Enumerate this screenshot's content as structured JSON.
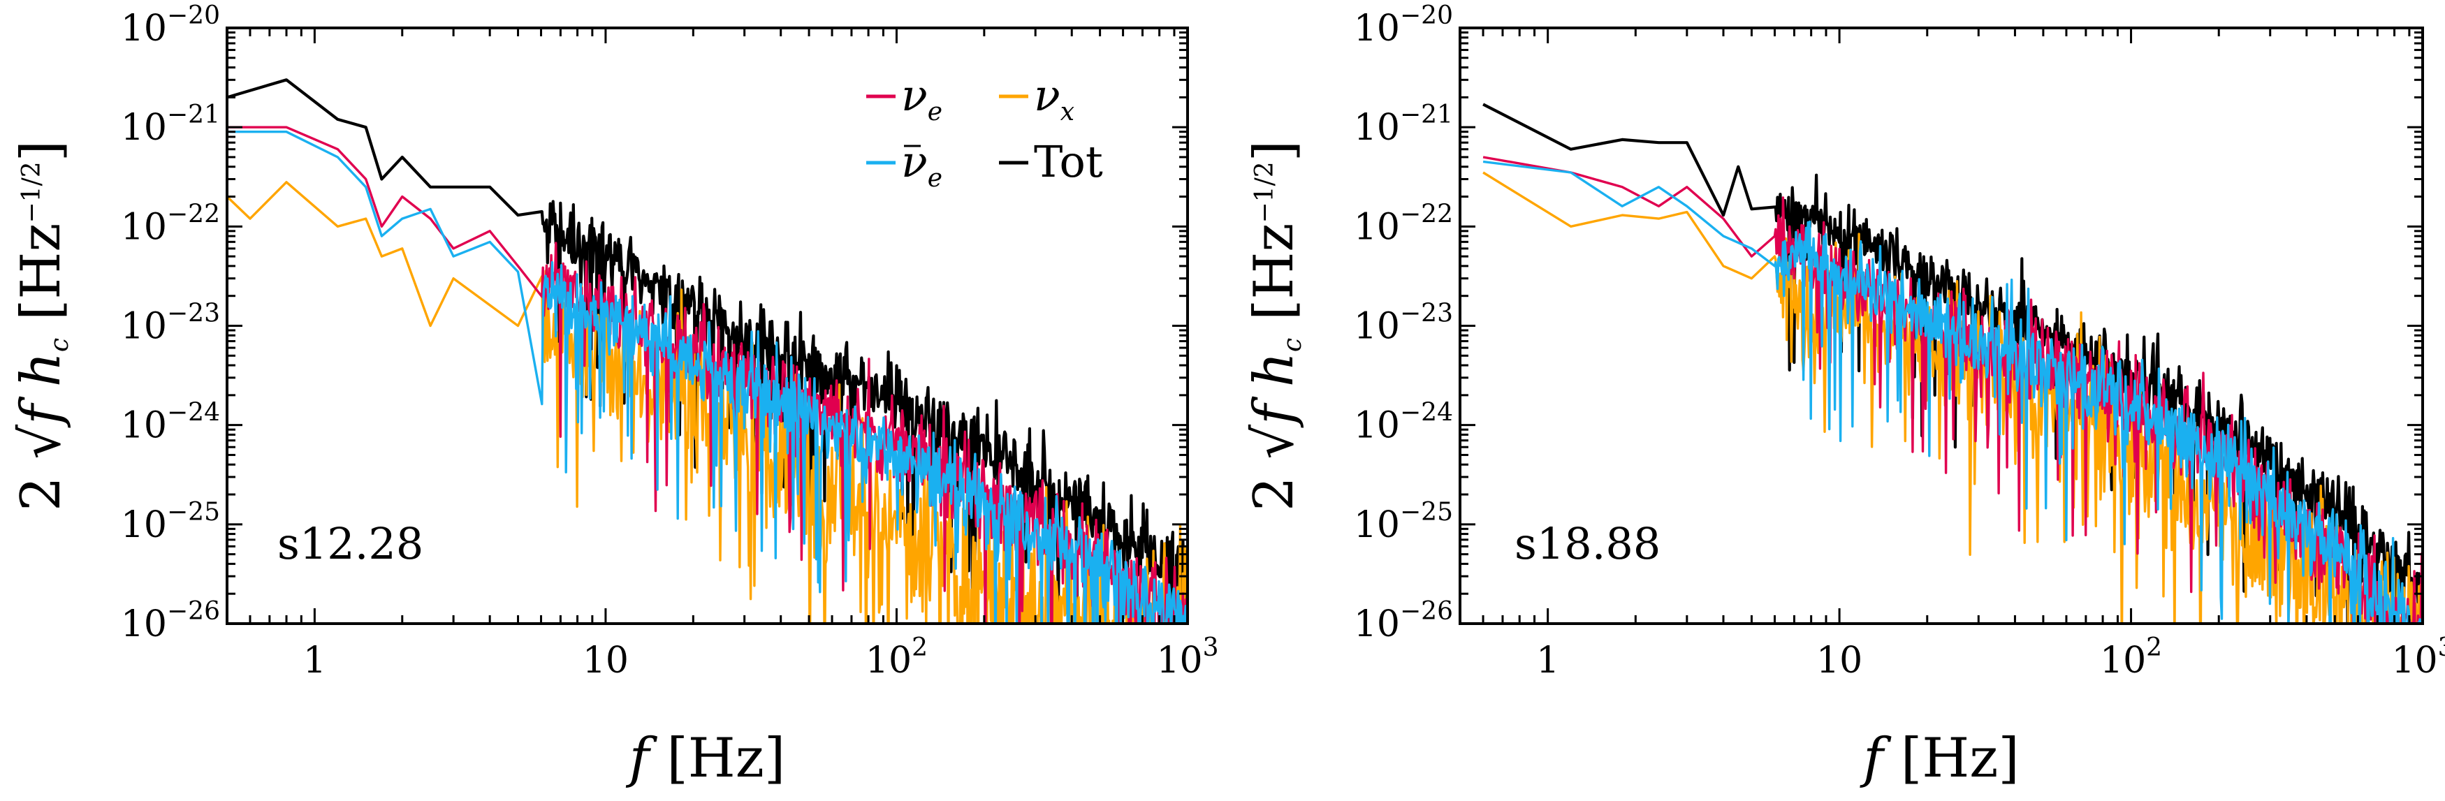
{
  "chart_data": [
    {
      "type": "line",
      "panel_label": "s12.28",
      "xlabel": "f [Hz]",
      "ylabel": "2 √f h_c [Hz^−1/2]",
      "xscale": "log",
      "yscale": "log",
      "xlim": [
        0.5,
        1000
      ],
      "ylim": [
        1e-26,
        1e-20
      ],
      "x_ticks": [
        {
          "value": 1,
          "label": "1"
        },
        {
          "value": 10,
          "label": "10"
        },
        {
          "value": 100,
          "base": "10",
          "exp": "2"
        },
        {
          "value": 1000,
          "base": "10",
          "exp": "3"
        }
      ],
      "y_ticks": [
        {
          "value": 1e-20,
          "base": "10",
          "exp": "−20"
        },
        {
          "value": 1e-21,
          "base": "10",
          "exp": "−21"
        },
        {
          "value": 1e-22,
          "base": "10",
          "exp": "−22"
        },
        {
          "value": 1e-23,
          "base": "10",
          "exp": "−23"
        },
        {
          "value": 1e-24,
          "base": "10",
          "exp": "−24"
        },
        {
          "value": 1e-25,
          "base": "10",
          "exp": "−25"
        },
        {
          "value": 1e-26,
          "base": "10",
          "exp": "−26"
        }
      ],
      "legend": {
        "placement": "top-right",
        "entries": [
          {
            "label_main": "ν",
            "label_sub": "e",
            "bar": false
          },
          {
            "label_main": "ν",
            "label_sub": "x",
            "bar": false
          },
          {
            "label_main": "ν",
            "label_sub": "e",
            "bar": true
          },
          {
            "label_main": "Tot",
            "label_sub": "",
            "bar": false
          }
        ]
      },
      "series": [
        {
          "key": "nu_e",
          "color": "#e0004f",
          "model": {
            "amp": 1.1e-21,
            "f1": 2.0,
            "p1": 2.1,
            "fc": 500,
            "p2": 2.5,
            "noise": 0.5,
            "seed": 11
          },
          "points": [
            [
              0.5,
              1e-21
            ],
            [
              0.8,
              1e-21
            ],
            [
              1.2,
              6e-22
            ],
            [
              1.5,
              3e-22
            ],
            [
              1.7,
              1e-22
            ],
            [
              2.0,
              2e-22
            ],
            [
              2.5,
              1.2e-22
            ],
            [
              3.0,
              6e-23
            ],
            [
              4.0,
              9e-23
            ],
            [
              5.0,
              4e-23
            ],
            [
              7.0,
              2.5e-23
            ],
            [
              10,
              1.4e-23
            ],
            [
              20,
              5e-24
            ],
            [
              50,
              1.5e-24
            ],
            [
              100,
              6e-25
            ],
            [
              200,
              2e-25
            ],
            [
              500,
              4e-26
            ],
            [
              1000,
              1e-26
            ]
          ]
        },
        {
          "key": "nu_x",
          "color": "#ffa500",
          "model": {
            "amp": 2.2e-22,
            "f1": 2.0,
            "p1": 1.7,
            "fc": 400,
            "p2": 3.0,
            "noise": 0.9,
            "seed": 23
          },
          "points": [
            [
              0.5,
              2e-22
            ],
            [
              0.6,
              1.2e-22
            ],
            [
              0.8,
              2.8e-22
            ],
            [
              1.2,
              1e-22
            ],
            [
              1.5,
              1.2e-22
            ],
            [
              1.7,
              5e-23
            ],
            [
              2.0,
              6e-23
            ],
            [
              2.5,
              1e-23
            ],
            [
              3.0,
              3e-23
            ],
            [
              5.0,
              1e-23
            ],
            [
              10,
              4e-24
            ],
            [
              20,
              1.5e-24
            ],
            [
              50,
              3e-25
            ],
            [
              100,
              1e-25
            ],
            [
              200,
              3e-26
            ],
            [
              500,
              1e-26
            ]
          ]
        },
        {
          "key": "nu_e_bar",
          "color": "#1ab0f0",
          "model": {
            "amp": 9e-22,
            "f1": 2.0,
            "p1": 2.0,
            "fc": 520,
            "p2": 2.5,
            "noise": 0.5,
            "seed": 37
          },
          "points": [
            [
              0.5,
              9e-22
            ],
            [
              0.8,
              9e-22
            ],
            [
              1.2,
              5e-22
            ],
            [
              1.5,
              2.5e-22
            ],
            [
              1.7,
              8e-23
            ],
            [
              2.0,
              1.2e-22
            ],
            [
              2.5,
              1.5e-22
            ],
            [
              3.0,
              5e-23
            ],
            [
              4.0,
              7e-23
            ],
            [
              5.0,
              3.5e-23
            ],
            [
              7.0,
              2e-23
            ],
            [
              10,
              1.2e-23
            ],
            [
              20,
              4.5e-24
            ],
            [
              50,
              1.3e-24
            ],
            [
              100,
              5e-25
            ],
            [
              200,
              1.7e-25
            ],
            [
              500,
              3.5e-26
            ],
            [
              1000,
              1e-26
            ]
          ]
        },
        {
          "key": "tot",
          "color": "#000000",
          "model": {
            "amp": 2.6e-21,
            "f1": 2.0,
            "p1": 2.2,
            "fc": 600,
            "p2": 2.6,
            "noise": 0.45,
            "seed": 53
          },
          "points": [
            [
              0.5,
              2e-21
            ],
            [
              0.8,
              3e-21
            ],
            [
              1.2,
              1.2e-21
            ],
            [
              1.5,
              1e-21
            ],
            [
              1.7,
              3e-22
            ],
            [
              2.0,
              5e-22
            ],
            [
              2.5,
              2.5e-22
            ],
            [
              3.0,
              2.5e-22
            ],
            [
              4.0,
              2.5e-22
            ],
            [
              5.0,
              1.3e-22
            ],
            [
              7.0,
              8e-23
            ],
            [
              10,
              5e-23
            ],
            [
              20,
              1.5e-23
            ],
            [
              50,
              4e-24
            ],
            [
              100,
              1.6e-24
            ],
            [
              200,
              6e-25
            ],
            [
              500,
              1.2e-25
            ],
            [
              1000,
              3e-26
            ]
          ]
        }
      ]
    },
    {
      "type": "line",
      "panel_label": "s18.88",
      "xlabel": "f [Hz]",
      "ylabel": "2 √f h_c [Hz^−1/2]",
      "xscale": "log",
      "yscale": "log",
      "xlim": [
        0.5,
        1000
      ],
      "ylim": [
        1e-26,
        1e-20
      ],
      "x_ticks": [
        {
          "value": 1,
          "label": "1"
        },
        {
          "value": 10,
          "label": "10"
        },
        {
          "value": 100,
          "base": "10",
          "exp": "2"
        },
        {
          "value": 1000,
          "base": "10",
          "exp": "3"
        }
      ],
      "y_ticks": [
        {
          "value": 1e-20,
          "base": "10",
          "exp": "−20"
        },
        {
          "value": 1e-21,
          "base": "10",
          "exp": "−21"
        },
        {
          "value": 1e-22,
          "base": "10",
          "exp": "−22"
        },
        {
          "value": 1e-23,
          "base": "10",
          "exp": "−23"
        },
        {
          "value": 1e-24,
          "base": "10",
          "exp": "−24"
        },
        {
          "value": 1e-25,
          "base": "10",
          "exp": "−25"
        },
        {
          "value": 1e-26,
          "base": "10",
          "exp": "−26"
        }
      ],
      "series": [
        {
          "key": "nu_e",
          "color": "#e0004f",
          "model": {
            "amp": 5.5e-22,
            "f1": 4.0,
            "p1": 1.6,
            "fc": 300,
            "p2": 3.0,
            "noise": 0.55,
            "seed": 71
          },
          "points": [
            [
              0.6,
              5e-22
            ],
            [
              1.2,
              3.5e-22
            ],
            [
              1.8,
              2.5e-22
            ],
            [
              2.4,
              1.6e-22
            ],
            [
              3.0,
              2.5e-22
            ],
            [
              4.0,
              1.2e-22
            ],
            [
              5.0,
              5e-23
            ],
            [
              6.0,
              8e-23
            ],
            [
              8.0,
              5e-23
            ],
            [
              10,
              3e-23
            ],
            [
              20,
              1e-23
            ],
            [
              50,
              4e-24
            ],
            [
              100,
              1.8e-24
            ],
            [
              200,
              5e-25
            ],
            [
              500,
              5e-26
            ],
            [
              800,
              1e-26
            ]
          ]
        },
        {
          "key": "nu_x",
          "color": "#ffa500",
          "model": {
            "amp": 2.6e-22,
            "f1": 4.0,
            "p1": 1.8,
            "fc": 250,
            "p2": 3.4,
            "noise": 0.8,
            "seed": 83
          },
          "points": [
            [
              0.6,
              3.5e-22
            ],
            [
              1.2,
              1e-22
            ],
            [
              1.8,
              1.3e-22
            ],
            [
              2.4,
              1.2e-22
            ],
            [
              3.0,
              1.4e-22
            ],
            [
              4.0,
              4e-23
            ],
            [
              5.0,
              3e-23
            ],
            [
              6.0,
              5e-23
            ],
            [
              8.0,
              8e-24
            ],
            [
              10,
              2e-23
            ],
            [
              20,
              6e-24
            ],
            [
              50,
              2e-24
            ],
            [
              100,
              6e-25
            ],
            [
              200,
              1.5e-25
            ],
            [
              500,
              2e-26
            ],
            [
              700,
              1e-26
            ]
          ]
        },
        {
          "key": "nu_e_bar",
          "color": "#1ab0f0",
          "model": {
            "amp": 4.5e-22,
            "f1": 4.0,
            "p1": 1.6,
            "fc": 330,
            "p2": 3.0,
            "noise": 0.5,
            "seed": 97
          },
          "points": [
            [
              0.6,
              4.5e-22
            ],
            [
              1.2,
              3.5e-22
            ],
            [
              1.8,
              1.6e-22
            ],
            [
              2.4,
              2.5e-22
            ],
            [
              3.0,
              1.6e-22
            ],
            [
              4.0,
              8e-23
            ],
            [
              5.0,
              6e-23
            ],
            [
              6.0,
              4e-23
            ],
            [
              8.0,
              6e-23
            ],
            [
              10,
              3e-23
            ],
            [
              20,
              1.2e-23
            ],
            [
              50,
              4e-24
            ],
            [
              100,
              1.6e-24
            ],
            [
              200,
              5e-25
            ],
            [
              500,
              6e-26
            ],
            [
              900,
              1e-26
            ]
          ]
        },
        {
          "key": "tot",
          "color": "#000000",
          "model": {
            "amp": 1.6e-21,
            "f1": 3.0,
            "p1": 1.7,
            "fc": 450,
            "p2": 3.0,
            "noise": 0.4,
            "seed": 109
          },
          "points": [
            [
              0.6,
              1.7e-21
            ],
            [
              1.2,
              6e-22
            ],
            [
              1.8,
              7.5e-22
            ],
            [
              2.4,
              7e-22
            ],
            [
              3.0,
              7e-22
            ],
            [
              4.0,
              1.3e-22
            ],
            [
              4.5,
              4e-22
            ],
            [
              5.0,
              1.5e-22
            ],
            [
              7.0,
              1.5e-22
            ],
            [
              10,
              1e-22
            ],
            [
              20,
              3e-23
            ],
            [
              50,
              9e-24
            ],
            [
              100,
              3e-24
            ],
            [
              200,
              1e-24
            ],
            [
              500,
              1.5e-25
            ],
            [
              1000,
              2e-26
            ]
          ]
        }
      ]
    }
  ]
}
